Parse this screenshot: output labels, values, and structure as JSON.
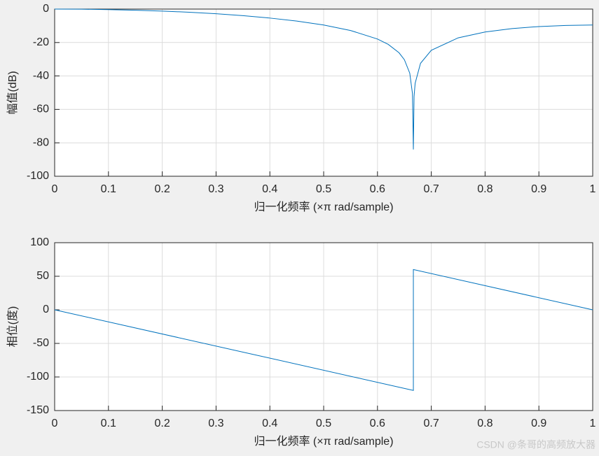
{
  "chart_data": [
    {
      "type": "line",
      "xlabel": "归一化频率  (×π rad/sample)",
      "ylabel": "幅值(dB)",
      "x": [
        0,
        0.05,
        0.1,
        0.15,
        0.2,
        0.25,
        0.3,
        0.35,
        0.4,
        0.45,
        0.5,
        0.55,
        0.6,
        0.62,
        0.64,
        0.65,
        0.66,
        0.665,
        0.6667,
        0.668,
        0.67,
        0.68,
        0.7,
        0.75,
        0.8,
        0.85,
        0.9,
        0.95,
        1
      ],
      "series": [
        {
          "color": "#0072bd",
          "values": [
            0,
            -0.07,
            -0.29,
            -0.66,
            -1.18,
            -1.89,
            -2.79,
            -3.93,
            -5.36,
            -7.18,
            -9.54,
            -12.8,
            -17.9,
            -21.12,
            -26.11,
            -30.27,
            -38.32,
            -50.5,
            -84,
            -52.3,
            -44.4,
            -32.44,
            -24.65,
            -17.2,
            -13.72,
            -11.68,
            -10.44,
            -9.76,
            -9.54
          ]
        }
      ],
      "xlim": [
        0,
        1
      ],
      "ylim": [
        -100,
        0
      ],
      "xticks": [
        0,
        0.1,
        0.2,
        0.3,
        0.4,
        0.5,
        0.6,
        0.7,
        0.8,
        0.9,
        1
      ],
      "yticks": [
        -100,
        -80,
        -60,
        -40,
        -20,
        0
      ],
      "grid": true
    },
    {
      "type": "line",
      "xlabel": "归一化频率  (×π rad/sample)",
      "ylabel": "相位(度)",
      "x": [
        0,
        0.6667,
        0.6667,
        1
      ],
      "series": [
        {
          "color": "#0072bd",
          "values": [
            0,
            -120,
            60,
            0
          ]
        }
      ],
      "xlim": [
        0,
        1
      ],
      "ylim": [
        -150,
        100
      ],
      "xticks": [
        0,
        0.1,
        0.2,
        0.3,
        0.4,
        0.5,
        0.6,
        0.7,
        0.8,
        0.9,
        1
      ],
      "yticks": [
        -150,
        -100,
        -50,
        0,
        50,
        100
      ],
      "grid": true
    }
  ],
  "watermark": "CSDN @条哥的高频放大器"
}
